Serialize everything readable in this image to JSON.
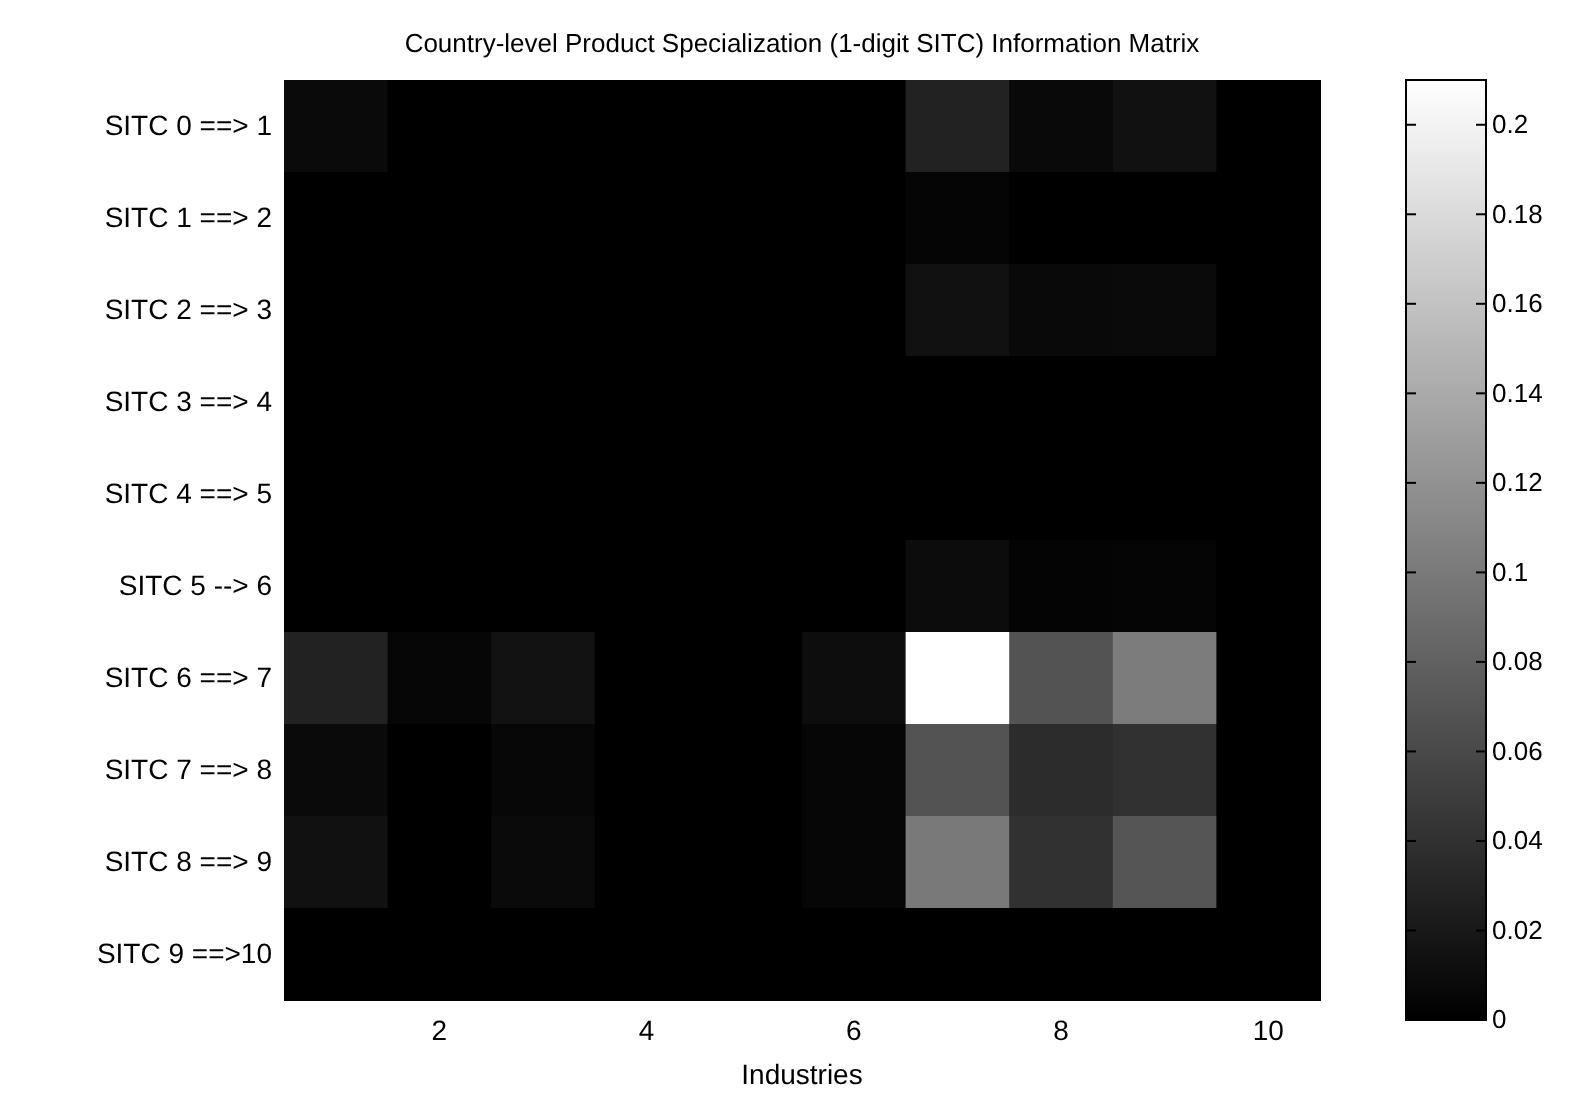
{
  "chart_data": {
    "type": "heatmap",
    "title": "Country-level Product Specialization (1-digit SITC) Information Matrix",
    "xlabel": "Industries",
    "categories": [
      null,
      "2",
      null,
      "4",
      null,
      "6",
      null,
      "8",
      null,
      "10"
    ],
    "y_categories": [
      "SITC 0 ==> 1",
      "SITC 1 ==> 2",
      "SITC 2 ==> 3",
      "SITC 3 ==> 4",
      "SITC 4 ==> 5",
      "SITC 5 --> 6",
      "SITC 6 ==> 7",
      "SITC 7 ==> 8",
      "SITC 8 ==> 9",
      "SITC 9 ==>10"
    ],
    "cells": [
      [
        0.008,
        0,
        0,
        0,
        0,
        0,
        0.028,
        0.007,
        0.014,
        0
      ],
      [
        0,
        0,
        0,
        0,
        0,
        0,
        0.004,
        0,
        0,
        0
      ],
      [
        0,
        0,
        0,
        0,
        0,
        0,
        0.014,
        0.007,
        0.008,
        0
      ],
      [
        0,
        0,
        0,
        0,
        0,
        0,
        0,
        0,
        0,
        0
      ],
      [
        0,
        0,
        0,
        0,
        0,
        0,
        0,
        0,
        0,
        0
      ],
      [
        0,
        0,
        0,
        0,
        0,
        0,
        0.01,
        0.003,
        0.004,
        0
      ],
      [
        0.028,
        0.005,
        0.015,
        0,
        0,
        0.011,
        0.21,
        0.068,
        0.102,
        0
      ],
      [
        0.008,
        0,
        0.006,
        0,
        0,
        0.005,
        0.068,
        0.036,
        0.04,
        0
      ],
      [
        0.014,
        0,
        0.008,
        0,
        0,
        0.005,
        0.1,
        0.04,
        0.07,
        0
      ],
      [
        0,
        0,
        0,
        0,
        0,
        0,
        0,
        0,
        0,
        0
      ]
    ],
    "clim": [
      0,
      0.21
    ],
    "cticks": [
      0,
      0.02,
      0.04,
      0.06,
      0.08,
      0.1,
      0.12,
      0.14,
      0.16,
      0.18,
      0.2
    ]
  }
}
